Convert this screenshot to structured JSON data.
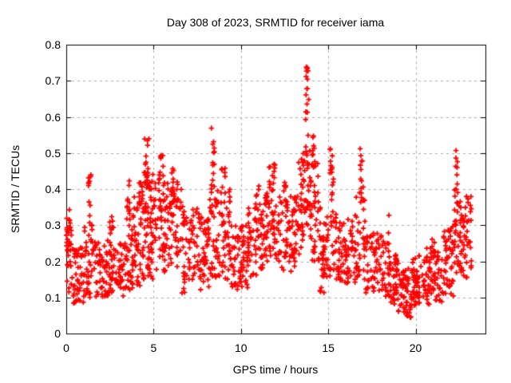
{
  "page": {
    "background": "#ffffff"
  },
  "chart_data": {
    "type": "scatter",
    "title": "Day 308 of 2023, SRMTID for receiver iama",
    "xlabel": "GPS time / hours",
    "ylabel": "SRMTID / TECUs",
    "xlim": [
      0,
      24
    ],
    "ylim": [
      0,
      0.8
    ],
    "x_ticks": [
      0,
      5,
      10,
      15,
      20
    ],
    "y_ticks": [
      0,
      0.1,
      0.2,
      0.3,
      0.4,
      0.5,
      0.6,
      0.7,
      0.8
    ],
    "grid": true,
    "legend_position": "none",
    "marker": "plus",
    "marker_color": "#ff0000",
    "grid_color": "#aaaaaa",
    "axis_color": "#000000",
    "background_color": "#ffffff",
    "data_start_hour": 0.0,
    "data_end_hour": 23.2,
    "max_value": 0.75,
    "min_value": 0.04,
    "point_bands": [
      [
        0.0,
        0.3,
        0.1,
        0.32,
        30
      ],
      [
        0.0,
        0.2,
        0.25,
        0.35,
        6
      ],
      [
        0.3,
        1.0,
        0.08,
        0.24,
        45
      ],
      [
        1.0,
        1.6,
        0.1,
        0.3,
        40
      ],
      [
        1.25,
        1.45,
        0.3,
        0.455,
        12
      ],
      [
        1.6,
        2.5,
        0.1,
        0.26,
        60
      ],
      [
        2.45,
        2.7,
        0.26,
        0.33,
        8
      ],
      [
        2.5,
        3.4,
        0.1,
        0.25,
        55
      ],
      [
        3.4,
        3.8,
        0.12,
        0.33,
        30
      ],
      [
        3.45,
        3.65,
        0.33,
        0.44,
        10
      ],
      [
        3.8,
        4.3,
        0.13,
        0.38,
        35
      ],
      [
        4.1,
        4.3,
        0.3,
        0.42,
        8
      ],
      [
        4.3,
        5.0,
        0.15,
        0.45,
        70
      ],
      [
        4.45,
        4.8,
        0.4,
        0.545,
        18
      ],
      [
        5.0,
        5.8,
        0.17,
        0.42,
        55
      ],
      [
        5.3,
        5.55,
        0.4,
        0.5,
        10
      ],
      [
        5.8,
        6.6,
        0.18,
        0.42,
        55
      ],
      [
        6.0,
        6.2,
        0.38,
        0.46,
        8
      ],
      [
        6.6,
        7.6,
        0.1,
        0.36,
        60
      ],
      [
        7.6,
        8.2,
        0.12,
        0.33,
        45
      ],
      [
        8.2,
        8.6,
        0.15,
        0.4,
        28
      ],
      [
        8.3,
        8.5,
        0.4,
        0.57,
        14
      ],
      [
        8.6,
        9.4,
        0.15,
        0.4,
        55
      ],
      [
        8.9,
        9.1,
        0.4,
        0.46,
        6
      ],
      [
        9.4,
        10.4,
        0.12,
        0.3,
        65
      ],
      [
        10.4,
        11.3,
        0.15,
        0.35,
        60
      ],
      [
        10.8,
        11.2,
        0.35,
        0.42,
        6
      ],
      [
        11.3,
        12.1,
        0.2,
        0.4,
        55
      ],
      [
        11.6,
        12.0,
        0.4,
        0.47,
        12
      ],
      [
        12.1,
        13.3,
        0.17,
        0.38,
        75
      ],
      [
        12.4,
        12.6,
        0.38,
        0.43,
        6
      ],
      [
        13.3,
        13.65,
        0.22,
        0.5,
        30
      ],
      [
        13.65,
        13.95,
        0.3,
        0.55,
        25
      ],
      [
        13.7,
        13.9,
        0.55,
        0.68,
        8
      ],
      [
        13.72,
        13.88,
        0.7,
        0.76,
        7
      ],
      [
        13.95,
        14.45,
        0.2,
        0.5,
        40
      ],
      [
        14.05,
        14.25,
        0.45,
        0.55,
        8
      ],
      [
        14.45,
        15.0,
        0.11,
        0.35,
        45
      ],
      [
        15.0,
        15.35,
        0.15,
        0.45,
        25
      ],
      [
        15.05,
        15.25,
        0.45,
        0.525,
        8
      ],
      [
        15.35,
        16.6,
        0.13,
        0.33,
        80
      ],
      [
        16.6,
        17.15,
        0.15,
        0.4,
        35
      ],
      [
        16.8,
        17.0,
        0.4,
        0.52,
        10
      ],
      [
        17.15,
        18.3,
        0.1,
        0.28,
        70
      ],
      [
        18.3,
        18.55,
        0.1,
        0.25,
        15
      ],
      [
        18.4,
        18.5,
        0.22,
        0.33,
        3
      ],
      [
        18.55,
        19.0,
        0.08,
        0.22,
        40
      ],
      [
        19.0,
        19.8,
        0.04,
        0.18,
        55
      ],
      [
        19.8,
        20.6,
        0.07,
        0.22,
        55
      ],
      [
        20.6,
        21.6,
        0.08,
        0.24,
        65
      ],
      [
        20.9,
        21.1,
        0.22,
        0.28,
        4
      ],
      [
        21.6,
        22.2,
        0.1,
        0.3,
        45
      ],
      [
        22.2,
        22.5,
        0.15,
        0.4,
        25
      ],
      [
        22.25,
        22.4,
        0.4,
        0.51,
        8
      ],
      [
        22.5,
        23.2,
        0.15,
        0.38,
        55
      ]
    ]
  }
}
